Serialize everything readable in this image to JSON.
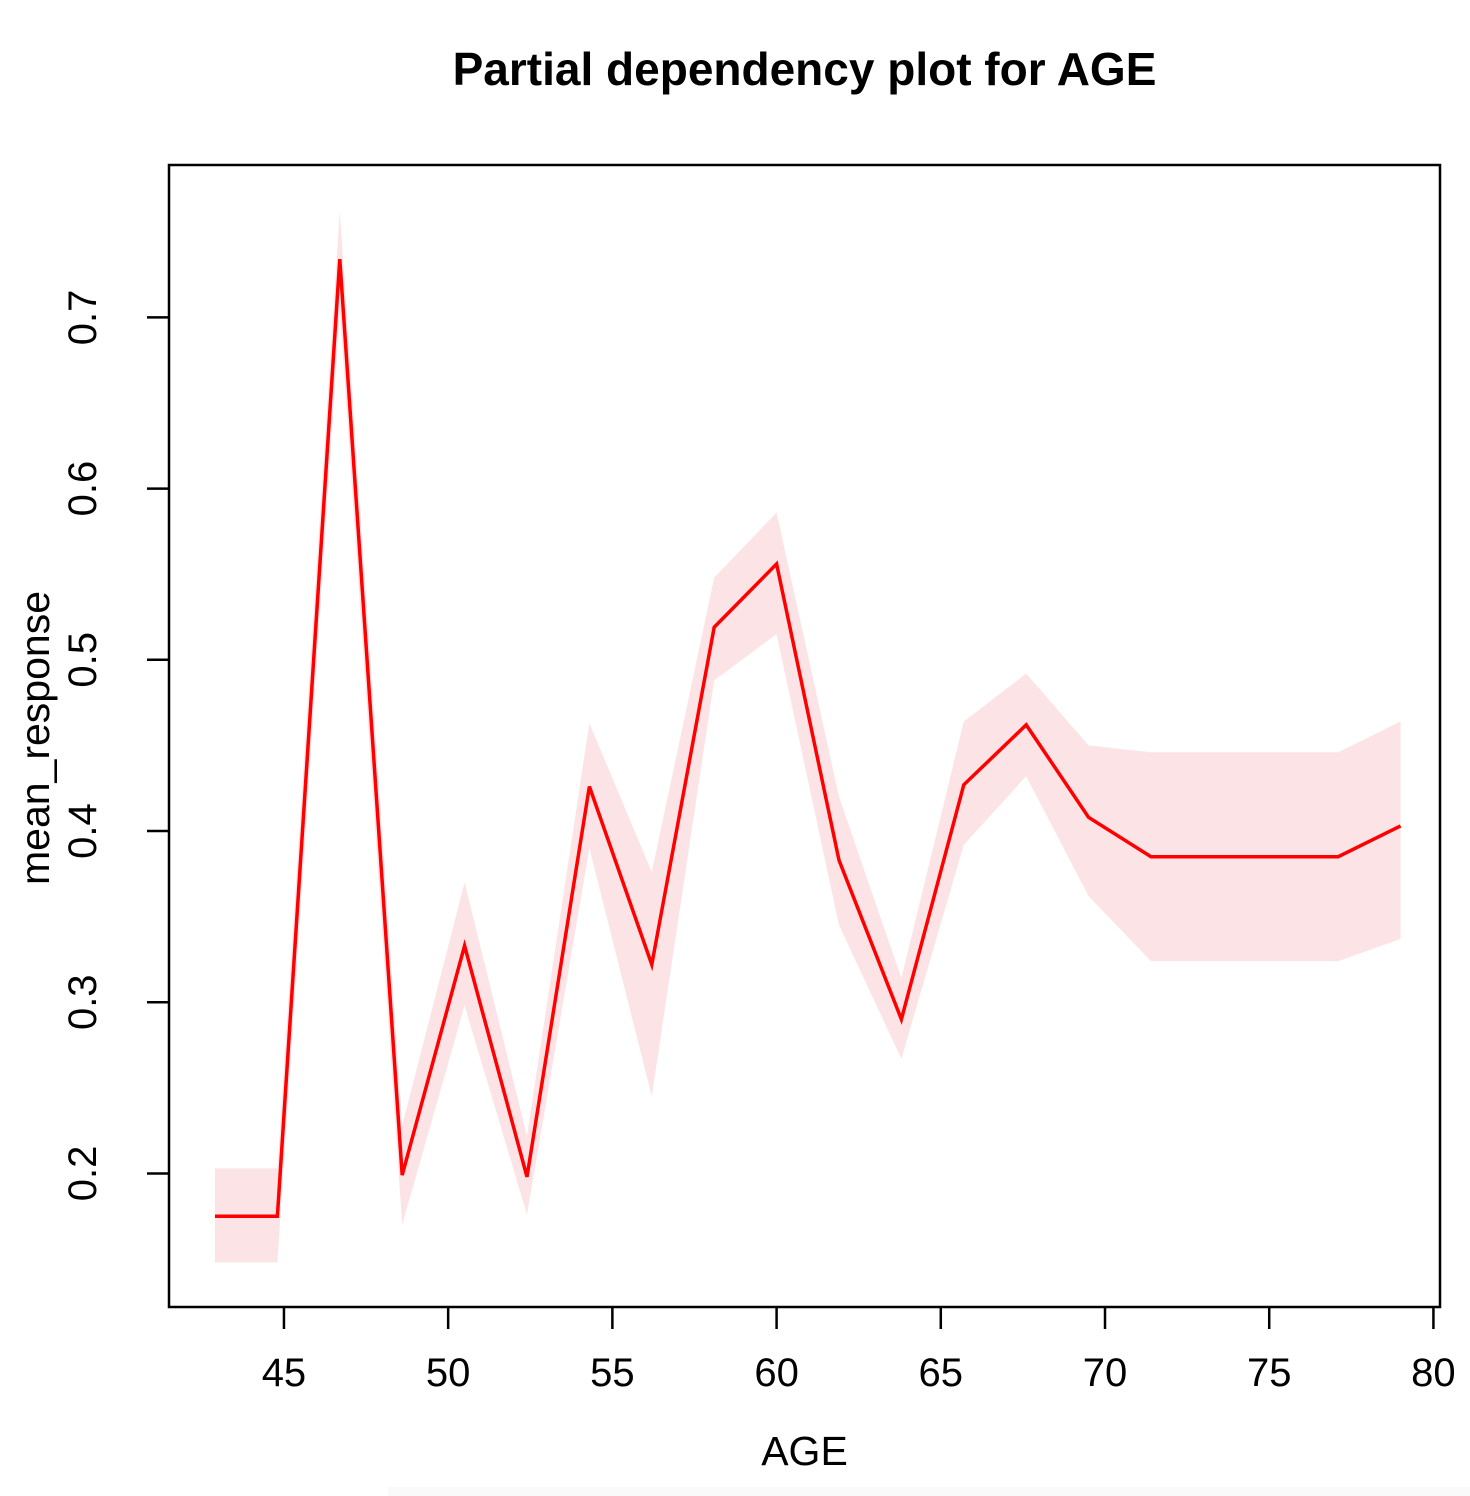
{
  "title": "Partial dependency plot for AGE",
  "chart_data": {
    "type": "line",
    "title": "Partial dependency plot for AGE",
    "xlabel": "AGE",
    "ylabel": "mean_response",
    "x": [
      42.9,
      44.8,
      46.7,
      48.6,
      50.5,
      52.4,
      54.3,
      56.2,
      58.1,
      60.0,
      61.9,
      63.8,
      65.7,
      67.6,
      69.5,
      71.4,
      73.3,
      75.2,
      77.1,
      79.0
    ],
    "series": [
      {
        "name": "mean_response",
        "values": [
          0.175,
          0.175,
          0.734,
          0.199,
          0.333,
          0.198,
          0.426,
          0.322,
          0.519,
          0.556,
          0.383,
          0.29,
          0.427,
          0.462,
          0.408,
          0.385,
          0.385,
          0.385,
          0.385,
          0.403
        ]
      },
      {
        "name": "band_lower",
        "values": [
          0.148,
          0.148,
          0.705,
          0.17,
          0.298,
          0.176,
          0.39,
          0.245,
          0.488,
          0.515,
          0.345,
          0.267,
          0.392,
          0.432,
          0.362,
          0.324,
          0.324,
          0.324,
          0.324,
          0.337
        ]
      },
      {
        "name": "band_upper",
        "values": [
          0.203,
          0.203,
          0.762,
          0.228,
          0.37,
          0.222,
          0.463,
          0.376,
          0.548,
          0.586,
          0.42,
          0.314,
          0.464,
          0.492,
          0.45,
          0.446,
          0.446,
          0.446,
          0.446,
          0.464
        ]
      }
    ],
    "x_ticks": [
      45,
      50,
      55,
      60,
      65,
      70,
      75,
      80
    ],
    "y_ticks": [
      0.2,
      0.3,
      0.4,
      0.5,
      0.6,
      0.7
    ],
    "xlim": [
      41.5,
      80.2
    ],
    "ylim": [
      0.122,
      0.789
    ],
    "grid": false,
    "legend": "none",
    "colors": {
      "line": "#ff0000",
      "band": "#fce4e6",
      "axis": "#000000",
      "background": "#ffffff"
    }
  }
}
